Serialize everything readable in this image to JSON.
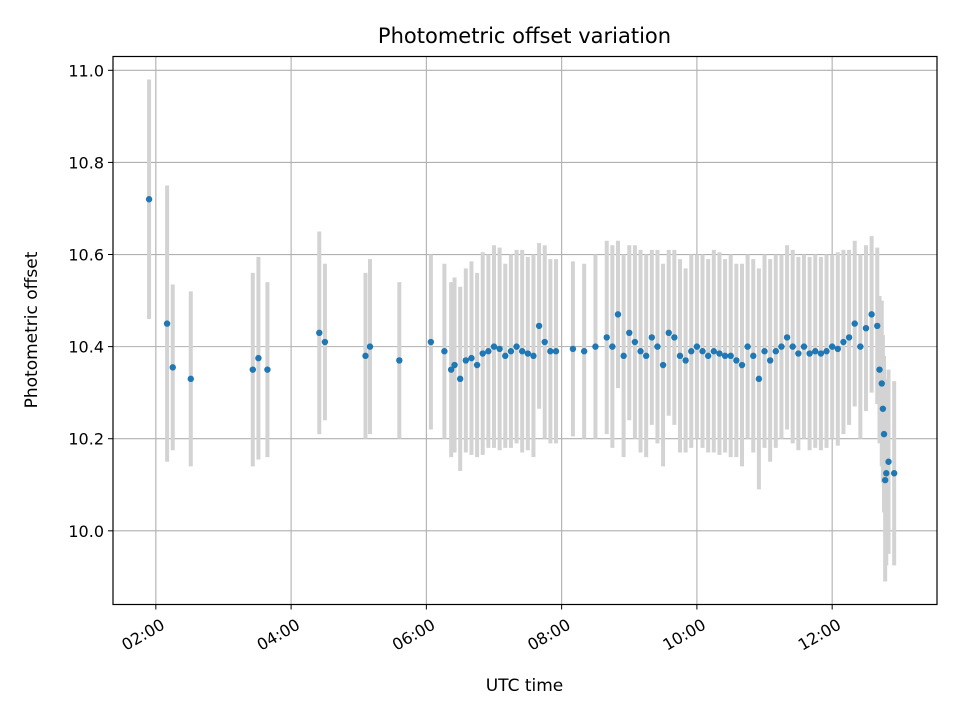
{
  "chart_data": {
    "type": "scatter",
    "title": "Photometric offset variation",
    "xlabel": "UTC time",
    "ylabel": "Photometric offset",
    "xlim": [
      "01:22",
      "13:33"
    ],
    "ylim": [
      9.84,
      11.03
    ],
    "grid": true,
    "x_ticks": [
      "02:00",
      "04:00",
      "06:00",
      "08:00",
      "10:00",
      "12:00"
    ],
    "y_ticks": [
      "10.0",
      "10.2",
      "10.4",
      "10.6",
      "10.8",
      "11.0"
    ],
    "point_color": "#1f77b4",
    "errorbar_color": "#d3d3d3",
    "series": [
      {
        "x": [
          "01:54",
          "02:10",
          "02:15",
          "02:31",
          "03:26",
          "03:31",
          "03:39",
          "04:25",
          "04:30",
          "05:06",
          "05:10",
          "05:36",
          "06:04",
          "06:16",
          "06:22",
          "06:25",
          "06:30",
          "06:35",
          "06:40",
          "06:45",
          "06:50",
          "06:55",
          "07:00",
          "07:05",
          "07:10",
          "07:15",
          "07:20",
          "07:25",
          "07:30",
          "07:35",
          "07:40",
          "07:45",
          "07:50",
          "07:55",
          "08:10",
          "08:20",
          "08:30",
          "08:40",
          "08:45",
          "08:50",
          "08:55",
          "09:00",
          "09:05",
          "09:10",
          "09:15",
          "09:20",
          "09:25",
          "09:30",
          "09:35",
          "09:40",
          "09:45",
          "09:50",
          "09:55",
          "10:00",
          "10:05",
          "10:10",
          "10:15",
          "10:20",
          "10:25",
          "10:30",
          "10:35",
          "10:40",
          "10:45",
          "10:50",
          "10:55",
          "11:00",
          "11:05",
          "11:10",
          "11:15",
          "11:20",
          "11:25",
          "11:30",
          "11:35",
          "11:40",
          "11:45",
          "11:50",
          "11:55",
          "12:00",
          "12:05",
          "12:10",
          "12:15",
          "12:20",
          "12:25",
          "12:30",
          "12:35",
          "12:40",
          "12:42",
          "12:44",
          "12:45",
          "12:46",
          "12:47",
          "12:48",
          "12:50",
          "12:55"
        ],
        "y": [
          10.72,
          10.45,
          10.355,
          10.33,
          10.35,
          10.375,
          10.35,
          10.43,
          10.41,
          10.38,
          10.4,
          10.37,
          10.41,
          10.39,
          10.35,
          10.36,
          10.33,
          10.37,
          10.375,
          10.36,
          10.385,
          10.39,
          10.4,
          10.395,
          10.38,
          10.39,
          10.4,
          10.39,
          10.385,
          10.38,
          10.445,
          10.41,
          10.39,
          10.39,
          10.395,
          10.39,
          10.4,
          10.42,
          10.4,
          10.47,
          10.38,
          10.43,
          10.41,
          10.39,
          10.38,
          10.42,
          10.4,
          10.36,
          10.43,
          10.42,
          10.38,
          10.37,
          10.39,
          10.4,
          10.39,
          10.38,
          10.39,
          10.385,
          10.38,
          10.38,
          10.37,
          10.36,
          10.4,
          10.38,
          10.33,
          10.39,
          10.37,
          10.39,
          10.4,
          10.42,
          10.4,
          10.385,
          10.4,
          10.385,
          10.39,
          10.385,
          10.39,
          10.4,
          10.395,
          10.41,
          10.42,
          10.45,
          10.4,
          10.44,
          10.47,
          10.445,
          10.35,
          10.32,
          10.265,
          10.21,
          10.11,
          10.125,
          10.15,
          10.125
        ],
        "err": [
          0.26,
          0.3,
          0.18,
          0.19,
          0.21,
          0.22,
          0.19,
          0.22,
          0.17,
          0.18,
          0.19,
          0.17,
          0.19,
          0.19,
          0.19,
          0.19,
          0.2,
          0.2,
          0.21,
          0.2,
          0.22,
          0.21,
          0.22,
          0.22,
          0.2,
          0.21,
          0.21,
          0.22,
          0.21,
          0.22,
          0.18,
          0.21,
          0.2,
          0.2,
          0.19,
          0.19,
          0.2,
          0.21,
          0.22,
          0.16,
          0.22,
          0.19,
          0.21,
          0.22,
          0.22,
          0.19,
          0.21,
          0.22,
          0.18,
          0.19,
          0.21,
          0.2,
          0.21,
          0.2,
          0.21,
          0.21,
          0.22,
          0.22,
          0.21,
          0.22,
          0.21,
          0.22,
          0.2,
          0.21,
          0.24,
          0.21,
          0.22,
          0.21,
          0.2,
          0.2,
          0.21,
          0.21,
          0.2,
          0.21,
          0.21,
          0.21,
          0.21,
          0.2,
          0.21,
          0.2,
          0.19,
          0.18,
          0.2,
          0.18,
          0.17,
          0.17,
          0.16,
          0.18,
          0.16,
          0.17,
          0.22,
          0.2,
          0.2,
          0.2
        ]
      }
    ]
  }
}
